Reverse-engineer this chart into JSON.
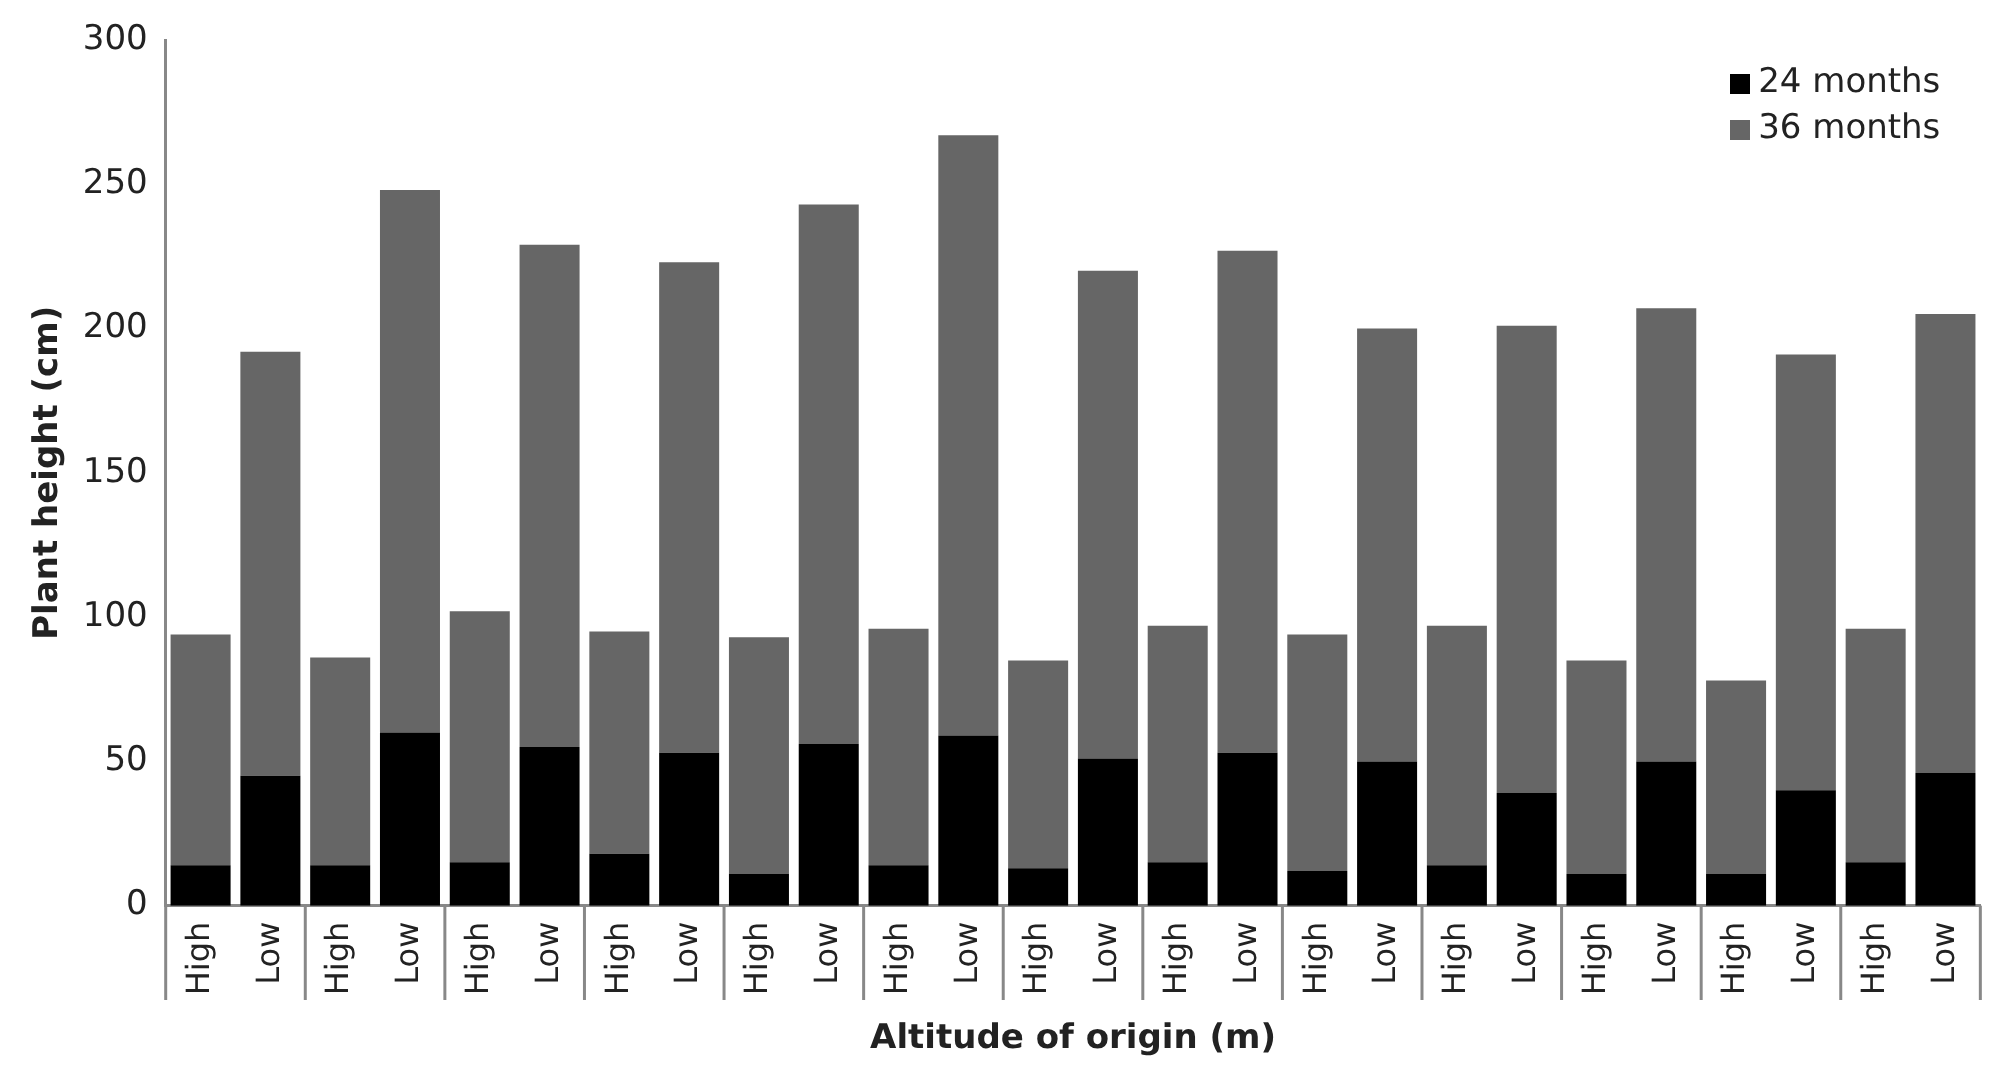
{
  "chart_data": {
    "type": "bar",
    "xlabel": "Altitude of origin (m)",
    "ylabel": "Plant height (cm)",
    "categories": [
      "High",
      "Low",
      "High",
      "Low",
      "High",
      "Low",
      "High",
      "Low",
      "High",
      "Low",
      "High",
      "Low",
      "High",
      "Low",
      "High",
      "Low",
      "High",
      "Low",
      "High",
      "Low",
      "High",
      "Low",
      "High",
      "Low",
      "High",
      "Low"
    ],
    "series": [
      {
        "name": "24 months",
        "color": "#000000",
        "values": [
          14,
          45,
          14,
          60,
          15,
          55,
          18,
          53,
          11,
          56,
          14,
          59,
          13,
          51,
          15,
          53,
          12,
          50,
          14,
          39,
          11,
          50,
          11,
          40,
          15,
          46
        ]
      },
      {
        "name": "36 months",
        "color": "#666666",
        "values": [
          80,
          147,
          72,
          188,
          87,
          174,
          77,
          170,
          82,
          187,
          82,
          208,
          72,
          169,
          82,
          174,
          82,
          150,
          83,
          162,
          74,
          157,
          67,
          151,
          81,
          159
        ]
      }
    ],
    "stacked": true,
    "ylim": [
      0,
      300
    ],
    "yticks": [
      0,
      50,
      100,
      150,
      200,
      250,
      300
    ],
    "grid": false,
    "legend": "top right"
  }
}
